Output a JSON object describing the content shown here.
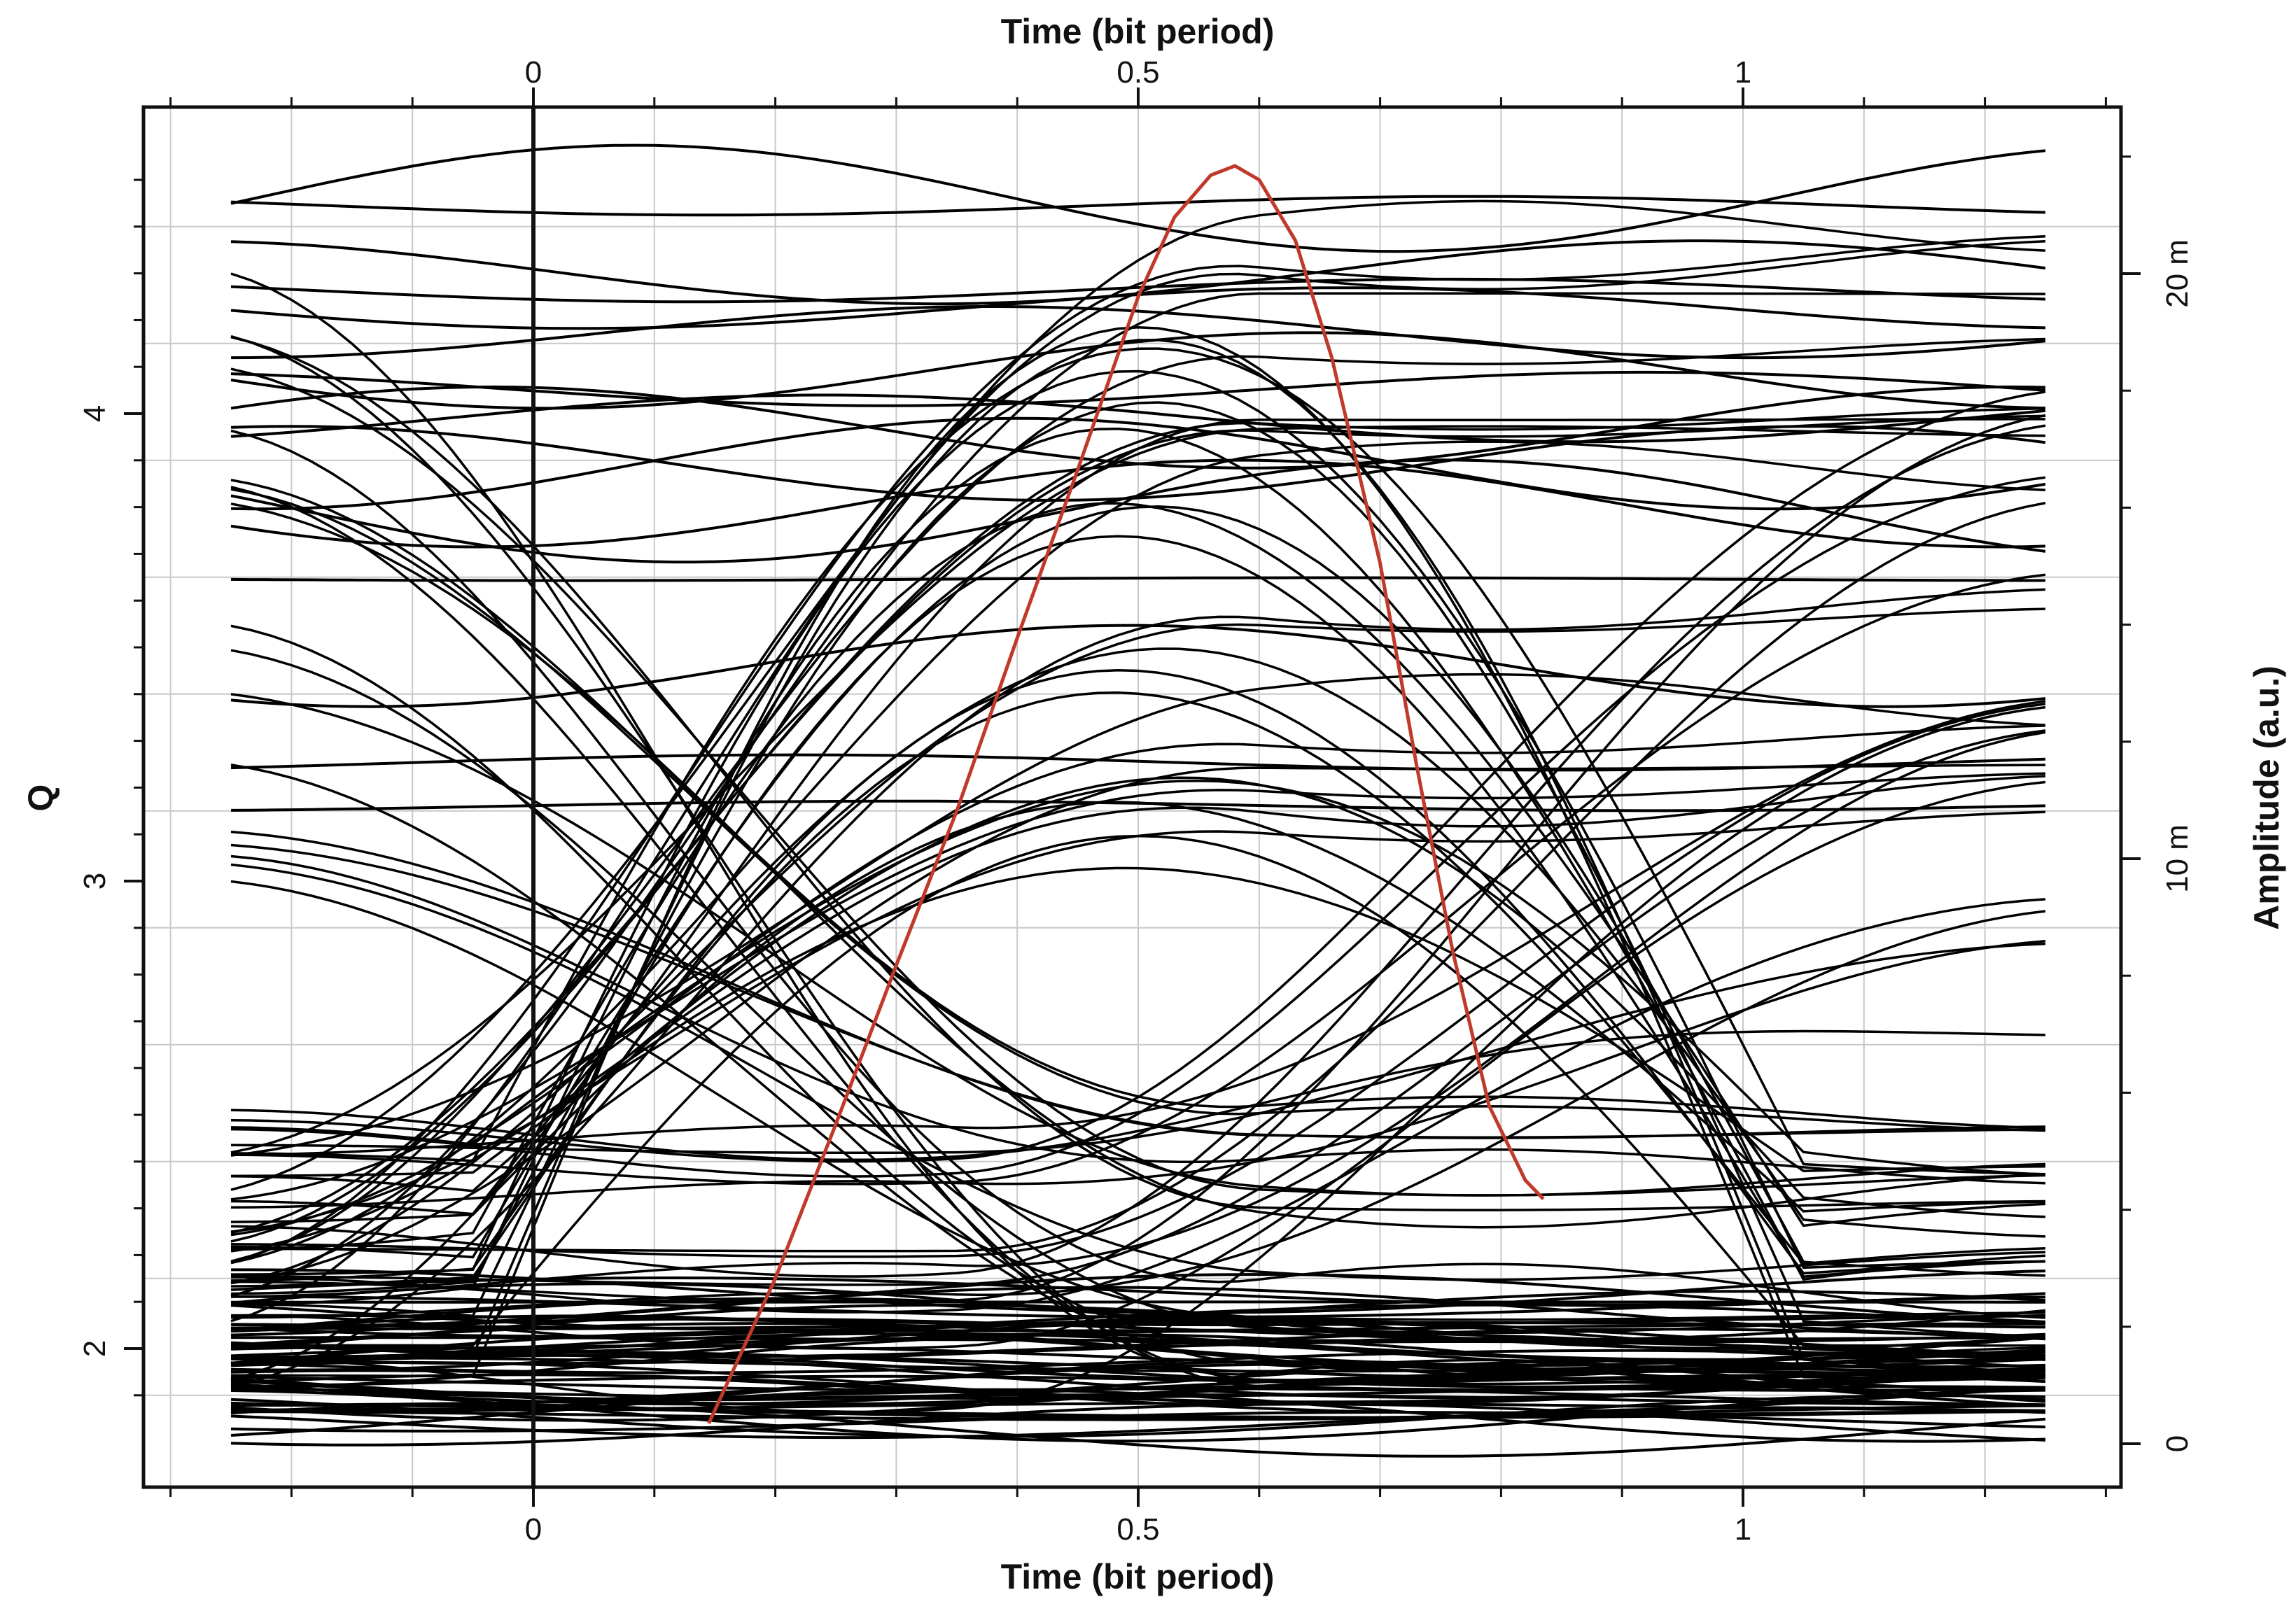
{
  "chart_data": {
    "type": "line",
    "title": "",
    "xlabel_top": "Time (bit period)",
    "xlabel_bottom": "Time (bit period)",
    "ylabel_left": "Q",
    "ylabel_right": "Amplitude (a.u.)",
    "xlim": [
      -0.33,
      1.31
    ],
    "ylim_left": [
      1.8,
      4.6
    ],
    "ylim_right": [
      -0.0005,
      0.0225
    ],
    "x_ticks": [
      {
        "value": 0,
        "label": "0"
      },
      {
        "value": 0.5,
        "label": "0.5"
      },
      {
        "value": 1,
        "label": "1"
      }
    ],
    "left_ticks": [
      {
        "value": 2,
        "label": "2"
      },
      {
        "value": 3,
        "label": "3"
      },
      {
        "value": 4,
        "label": "4"
      }
    ],
    "right_ticks": [
      {
        "value": 0,
        "label": "0"
      },
      {
        "value": 0.01,
        "label": "10 m"
      },
      {
        "value": 0.02,
        "label": "20 m"
      }
    ],
    "grid": true,
    "colors": {
      "eye": "#000000",
      "q_factor": "#c0392b",
      "grid": "#c8c8c8"
    },
    "series": [
      {
        "kind": "q_factor_curve",
        "axis": "left",
        "x": [
          0.145,
          0.2,
          0.25,
          0.3,
          0.35,
          0.4,
          0.45,
          0.5,
          0.53,
          0.56,
          0.58,
          0.6,
          0.63,
          0.66,
          0.7,
          0.73,
          0.76,
          0.79,
          0.82,
          0.835
        ],
        "y": [
          1.84,
          2.15,
          2.48,
          2.82,
          3.15,
          3.52,
          3.88,
          4.25,
          4.42,
          4.51,
          4.53,
          4.5,
          4.37,
          4.12,
          3.68,
          3.25,
          2.85,
          2.52,
          2.36,
          2.32
        ]
      },
      {
        "kind": "eye_diagram",
        "axis": "left",
        "x_range": [
          -0.25,
          1.25
        ],
        "low_levels": [
          1.85,
          1.87,
          1.9,
          1.92,
          1.95,
          1.98,
          2.0,
          2.03,
          2.06,
          2.1
        ],
        "high_levels": [
          4.45,
          4.3,
          4.2,
          4.1,
          4.0,
          3.92,
          3.85,
          3.75,
          3.6,
          3.45,
          3.3,
          3.2
        ]
      }
    ]
  }
}
